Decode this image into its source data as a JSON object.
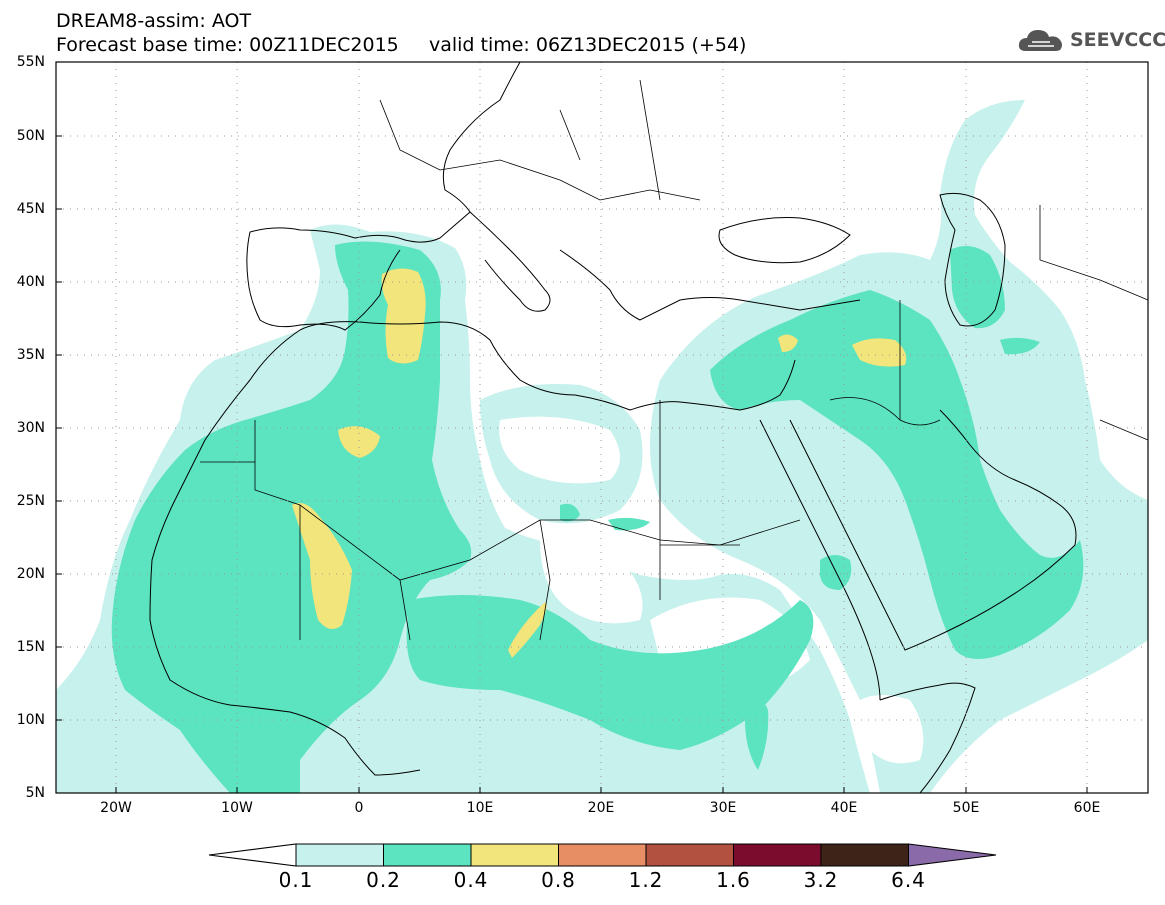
{
  "title": {
    "line1": "DREAM8-assim: AOT",
    "line2": "Forecast base time: 00Z11DEC2015     valid time: 06Z13DEC2015 (+54)"
  },
  "logo": {
    "text": "SEEVCCC",
    "icon": "cloud-icon"
  },
  "map": {
    "lon_range": [
      -25,
      65
    ],
    "lat_range": [
      5,
      55
    ],
    "lat_labels": [
      "55N",
      "50N",
      "45N",
      "40N",
      "35N",
      "30N",
      "25N",
      "20N",
      "15N",
      "10N",
      "5N"
    ],
    "lon_labels": [
      "20W",
      "10W",
      "0",
      "10E",
      "20E",
      "30E",
      "40E",
      "50E",
      "60E"
    ],
    "gridlines": "dotted",
    "colors": {
      "c01": "#c6f1ec",
      "c02": "#5ce3c0",
      "c04": "#f2e57c",
      "coast": "#000000"
    }
  },
  "colorbar": {
    "labels": [
      "0.1",
      "0.2",
      "0.4",
      "0.8",
      "1.2",
      "1.6",
      "3.2",
      "6.4"
    ],
    "colors": [
      "#ffffff",
      "#c6f1ec",
      "#5ce3c0",
      "#f2e57c",
      "#e88e64",
      "#b2513f",
      "#7c0c2d",
      "#3d2318",
      "#8a6aa8"
    ]
  }
}
